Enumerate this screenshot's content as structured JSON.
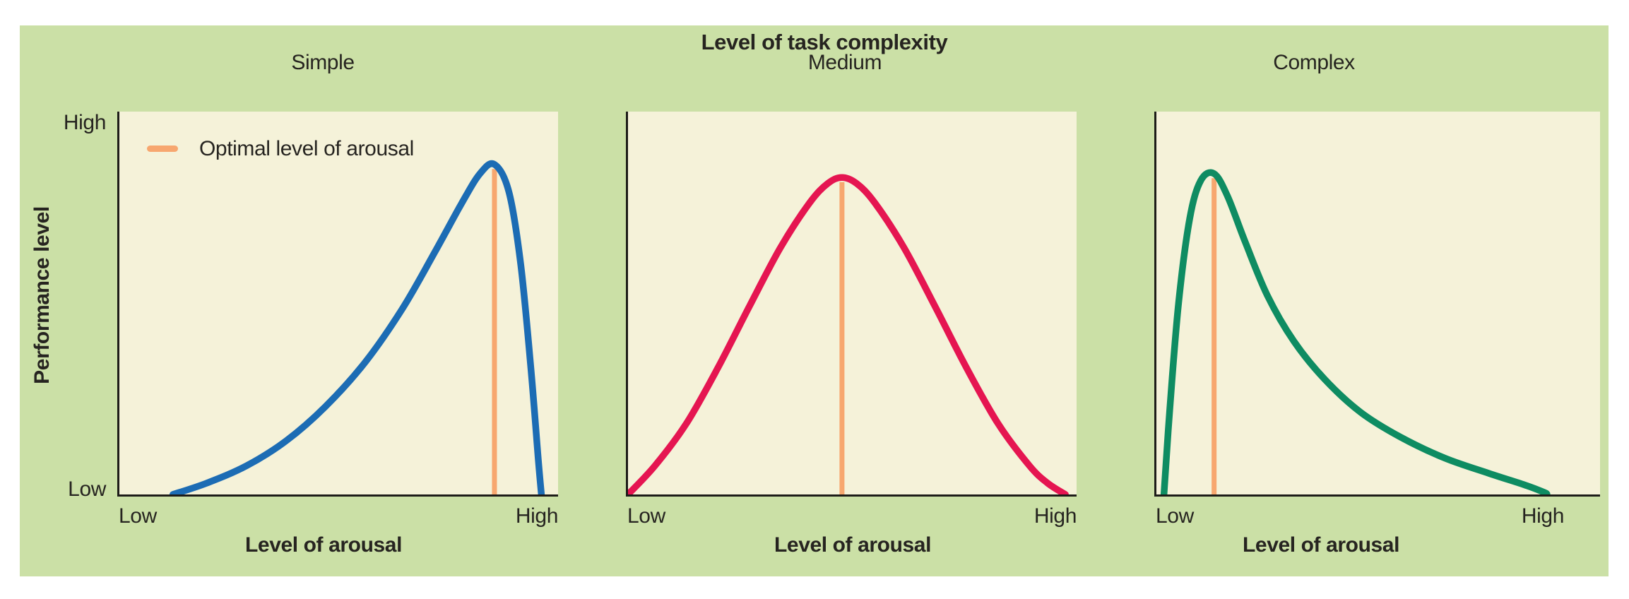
{
  "header": {
    "title": "Level of task complexity"
  },
  "axes": {
    "y_title": "Performance level",
    "x_title": "Level of arousal",
    "y_tick_top": "High",
    "y_tick_bottom": "Low",
    "x_tick_left": "Low",
    "x_tick_right": "High"
  },
  "legend": {
    "label": "Optimal level of arousal"
  },
  "colors": {
    "board_background": "#cbe0a6",
    "plot_background": "#f5f2d9",
    "axis": "#1d1c18",
    "text": "#262420",
    "optimal_line": "#f7a76f",
    "simple_curve": "#1c6cb4",
    "medium_curve": "#e51551",
    "complex_curve": "#0e8c62"
  },
  "chart_data": {
    "type": "line",
    "title": "Level of task complexity",
    "xlabel": "Level of arousal",
    "ylabel": "Performance level",
    "x_axis_range_labels": [
      "Low",
      "High"
    ],
    "y_axis_range_labels": [
      "Low",
      "High"
    ],
    "x_range_normalized": [
      0,
      1
    ],
    "y_range_normalized": [
      0,
      1
    ],
    "grid": false,
    "legend": [
      {
        "label": "Optimal level of arousal",
        "color": "#f7a76f"
      }
    ],
    "legend_position": "top-left of first panel",
    "panels": [
      {
        "subtitle": "Simple",
        "color": "#1c6cb4",
        "optimal_arousal_x": 0.855,
        "peak_performance": 0.862,
        "points": [
          [
            0.122,
            0.0
          ],
          [
            0.2,
            0.03
          ],
          [
            0.29,
            0.075
          ],
          [
            0.38,
            0.14
          ],
          [
            0.47,
            0.23
          ],
          [
            0.56,
            0.345
          ],
          [
            0.645,
            0.485
          ],
          [
            0.72,
            0.635
          ],
          [
            0.78,
            0.76
          ],
          [
            0.822,
            0.838
          ],
          [
            0.855,
            0.862
          ],
          [
            0.888,
            0.79
          ],
          [
            0.915,
            0.6
          ],
          [
            0.938,
            0.33
          ],
          [
            0.955,
            0.09
          ],
          [
            0.962,
            0.0
          ]
        ]
      },
      {
        "subtitle": "Medium",
        "color": "#e51551",
        "optimal_arousal_x": 0.477,
        "peak_performance": 0.828,
        "points": [
          [
            0.0,
            0.0
          ],
          [
            0.06,
            0.075
          ],
          [
            0.13,
            0.185
          ],
          [
            0.2,
            0.33
          ],
          [
            0.27,
            0.49
          ],
          [
            0.34,
            0.645
          ],
          [
            0.405,
            0.762
          ],
          [
            0.445,
            0.812
          ],
          [
            0.477,
            0.828
          ],
          [
            0.51,
            0.812
          ],
          [
            0.55,
            0.762
          ],
          [
            0.615,
            0.645
          ],
          [
            0.685,
            0.49
          ],
          [
            0.755,
            0.33
          ],
          [
            0.825,
            0.185
          ],
          [
            0.895,
            0.075
          ],
          [
            0.935,
            0.03
          ],
          [
            0.975,
            0.0
          ]
        ]
      },
      {
        "subtitle": "Complex",
        "color": "#0e8c62",
        "optimal_arousal_x": 0.13,
        "peak_performance": 0.838,
        "points": [
          [
            0.017,
            0.0
          ],
          [
            0.03,
            0.22
          ],
          [
            0.05,
            0.5
          ],
          [
            0.075,
            0.72
          ],
          [
            0.1,
            0.82
          ],
          [
            0.13,
            0.838
          ],
          [
            0.16,
            0.78
          ],
          [
            0.2,
            0.66
          ],
          [
            0.25,
            0.52
          ],
          [
            0.31,
            0.4
          ],
          [
            0.38,
            0.3
          ],
          [
            0.46,
            0.215
          ],
          [
            0.55,
            0.15
          ],
          [
            0.65,
            0.095
          ],
          [
            0.75,
            0.055
          ],
          [
            0.83,
            0.025
          ],
          [
            0.875,
            0.005
          ],
          [
            0.88,
            0.0
          ]
        ]
      }
    ]
  }
}
